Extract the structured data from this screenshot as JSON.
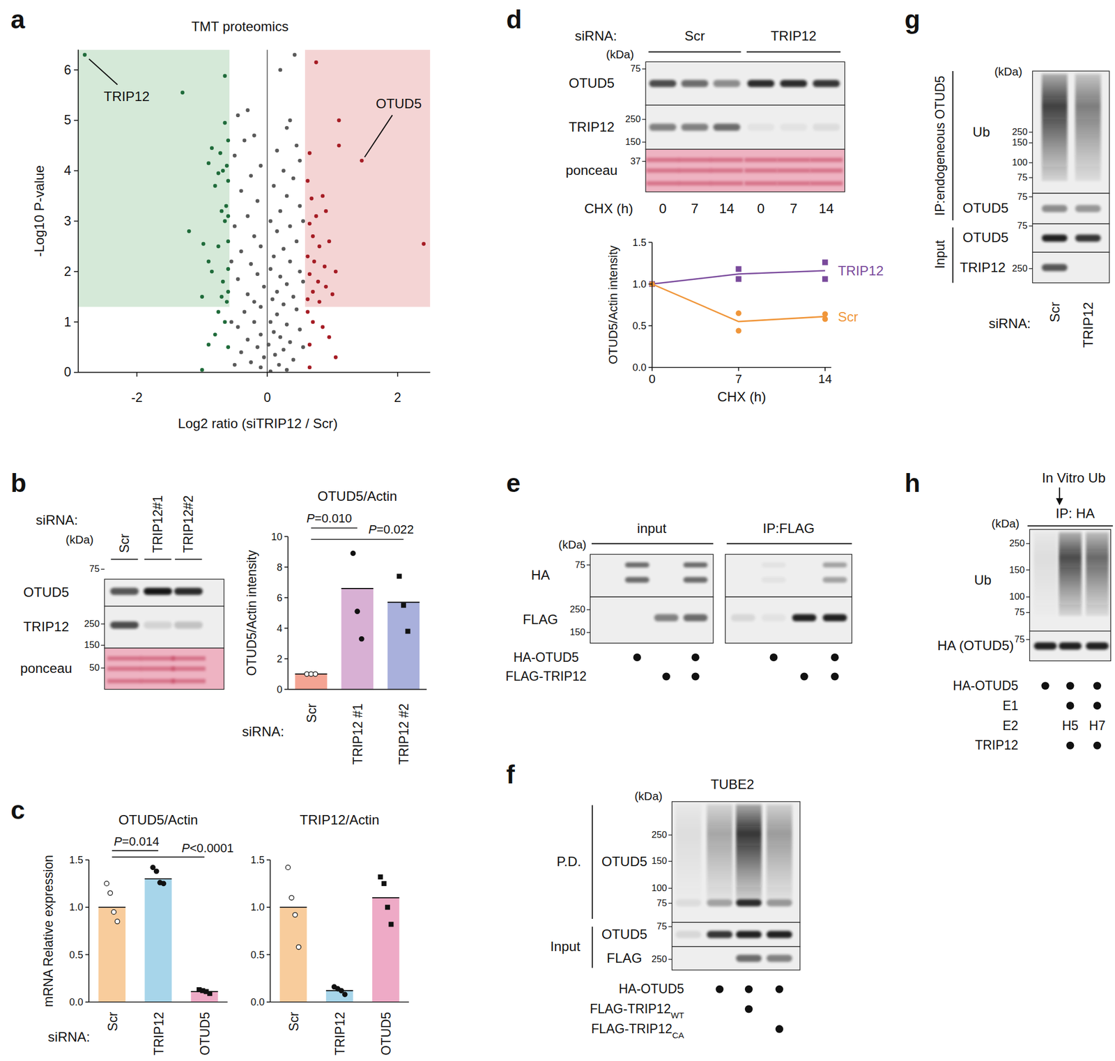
{
  "letters": [
    "a",
    "b",
    "c",
    "d",
    "e",
    "f",
    "g",
    "h"
  ],
  "chart_data": [
    {
      "type": "scatter",
      "title": "TMT proteomics",
      "xlabel": "Log2 ratio (siTRIP12 / Scr)",
      "ylabel": "-Log10 P-value",
      "xlim": [
        -2.9,
        2.5
      ],
      "ylim": [
        0,
        6.4
      ],
      "xticks": [
        -2,
        0,
        2
      ],
      "yticks": [
        0,
        1,
        2,
        3,
        4,
        5,
        6
      ],
      "regions": [
        {
          "color": "#d5e9d8",
          "x": [
            -2.9,
            -0.58
          ],
          "y": [
            1.3,
            6.4
          ]
        },
        {
          "color": "#f4d4d4",
          "x": [
            0.58,
            2.5
          ],
          "y": [
            1.3,
            6.4
          ]
        }
      ],
      "series": [
        {
          "color": "#1f6b3a",
          "x": [
            -2.8,
            -1.3,
            -0.65,
            -0.65,
            -0.6,
            -0.72,
            -0.85,
            -0.9,
            -0.62,
            -0.68,
            -0.75,
            -0.6,
            -0.8,
            -0.63,
            -0.6,
            -0.65,
            -0.7,
            -1.2,
            -0.6,
            -0.75,
            -0.98,
            -0.9,
            -0.85,
            -0.6,
            -0.68,
            -0.6,
            -0.7,
            -1.0,
            -0.62,
            -0.75,
            -0.65,
            -0.8,
            -0.9,
            -1.0,
            -0.6
          ],
          "values": [
            6.3,
            5.55,
            5.88,
            4.95,
            4.6,
            4.35,
            4.45,
            4.15,
            4.1,
            4.0,
            3.95,
            3.8,
            3.7,
            3.3,
            3.1,
            3.0,
            3.2,
            2.8,
            2.6,
            2.5,
            2.55,
            2.2,
            2.0,
            2.05,
            1.8,
            1.6,
            1.5,
            1.5,
            1.4,
            1.2,
            1.0,
            0.75,
            0.55,
            0.05,
            0.5
          ]
        },
        {
          "color": "#a51c24",
          "x": [
            1.45,
            0.75,
            1.1,
            1.1,
            2.4,
            0.65,
            0.62,
            0.68,
            0.85,
            0.9,
            0.75,
            0.65,
            0.7,
            0.95,
            0.8,
            0.62,
            0.72,
            0.88,
            1.05,
            0.65,
            0.78,
            0.9,
            0.7,
            1.0,
            0.62,
            0.8,
            0.62,
            0.7,
            0.85,
            0.95,
            0.65,
            1.05,
            0.65
          ],
          "values": [
            4.2,
            6.15,
            5.0,
            4.5,
            2.55,
            4.35,
            3.8,
            3.45,
            3.5,
            3.2,
            3.1,
            2.95,
            2.7,
            2.6,
            2.5,
            2.3,
            2.2,
            2.1,
            2.0,
            1.95,
            1.8,
            1.7,
            1.6,
            1.55,
            1.45,
            1.4,
            1.2,
            1.0,
            0.9,
            0.7,
            0.55,
            0.3,
            0.1
          ]
        },
        {
          "color": "#5a5a5a",
          "x": [
            0.2,
            0.42,
            -0.3,
            -0.45,
            0.3,
            0.35,
            -0.2,
            -0.35,
            0.15,
            0.45,
            0.5,
            -0.5,
            -0.1,
            0.25,
            -0.25,
            0.4,
            0.1,
            -0.4,
            0.3,
            -0.15,
            0.5,
            0.2,
            -0.3,
            0.05,
            -0.5,
            0.35,
            0.15,
            -0.2,
            0.45,
            -0.1,
            0.25,
            -0.4,
            0.1,
            0.35,
            -0.25,
            0.05,
            0.5,
            -0.15,
            0.2,
            -0.45,
            0.3,
            -0.05,
            0.15,
            -0.3,
            0.4,
            0.08,
            -0.2,
            0.25,
            -0.1,
            0.45,
            -0.35,
            0.15,
            0.05,
            -0.2,
            0.3,
            -0.45,
            0.5,
            0.1,
            -0.1,
            0.2,
            -0.3,
            0.35,
            0.02,
            -0.15,
            0.25,
            -0.4,
            0.12,
            -0.05,
            0.4,
            -0.25,
            0.18,
            -0.1,
            0.3,
            0.05,
            -0.5,
            0.55,
            -0.55,
            0.55,
            -0.55,
            0.55
          ],
          "values": [
            6.0,
            6.3,
            5.2,
            5.1,
            4.85,
            5.0,
            4.7,
            4.6,
            4.4,
            4.5,
            4.2,
            4.3,
            4.1,
            4.0,
            3.9,
            3.85,
            3.7,
            3.6,
            3.5,
            3.4,
            3.3,
            3.2,
            3.1,
            3.0,
            2.9,
            2.9,
            2.8,
            2.7,
            2.6,
            2.5,
            2.45,
            2.4,
            2.3,
            2.2,
            2.15,
            2.05,
            2.0,
            1.95,
            1.9,
            1.85,
            1.75,
            1.7,
            1.6,
            1.55,
            1.5,
            1.45,
            1.4,
            1.35,
            1.3,
            1.25,
            1.2,
            1.15,
            1.0,
            1.0,
            0.95,
            0.9,
            0.85,
            0.8,
            0.75,
            0.7,
            0.65,
            0.6,
            0.55,
            0.5,
            0.45,
            0.4,
            0.35,
            0.3,
            0.25,
            0.2,
            0.15,
            0.1,
            0.05,
            0.02,
            0.15,
            0.5,
            1.0,
            1.8,
            2.2,
            3.0
          ]
        }
      ],
      "annotations": [
        {
          "text": "TRIP12",
          "series": 0,
          "index": 0
        },
        {
          "text": "OTUD5",
          "series": 1,
          "index": 0
        }
      ]
    },
    {
      "type": "bar",
      "title": "OTUD5/Actin",
      "ylabel": "OTUD5/Actin intensity",
      "xlabel": "siRNA:",
      "categories": [
        "Scr",
        "TRIP12 #1",
        "TRIP12 #2"
      ],
      "values": [
        1.0,
        6.6,
        5.7
      ],
      "colors": [
        "#f4a493",
        "#d8b0d4",
        "#a9b0dc"
      ],
      "points": [
        [
          1.0,
          1.0,
          1.0
        ],
        [
          8.9,
          5.1,
          3.3
        ],
        [
          7.4,
          5.5,
          3.8
        ]
      ],
      "ylim": [
        0,
        10
      ],
      "yticks": [
        0,
        2,
        4,
        6,
        8,
        10
      ],
      "annotations": [
        {
          "text": "P=0.010",
          "from": 0,
          "to": 1
        },
        {
          "text": "P=0.022",
          "from": 0,
          "to": 2
        }
      ]
    },
    {
      "type": "bar",
      "title": "OTUD5/Actin",
      "ylabel": "mRNA Relative expression",
      "xlabel": "siRNA:",
      "categories": [
        "Scr",
        "TRIP12",
        "OTUD5"
      ],
      "values": [
        1.0,
        1.3,
        0.11
      ],
      "colors": [
        "#f8cc9c",
        "#a7d5ea",
        "#eeaac6"
      ],
      "points": [
        [
          1.25,
          1.15,
          0.95,
          0.85
        ],
        [
          1.42,
          1.38,
          1.26,
          1.25
        ],
        [
          0.13,
          0.12,
          0.11,
          0.09
        ]
      ],
      "ylim": [
        0,
        1.5
      ],
      "yticks": [
        {
          "value": 0,
          "label": "0.0"
        },
        {
          "value": 0.5,
          "label": "0.5"
        },
        {
          "value": 1,
          "label": "1.0"
        },
        {
          "value": 1.5,
          "label": "1.5"
        }
      ],
      "annotations": [
        {
          "text": "P=0.014",
          "from": 0,
          "to": 1
        },
        {
          "text": "P<0.0001",
          "from": 0,
          "to": 2
        }
      ]
    },
    {
      "type": "bar",
      "title": "TRIP12/Actin",
      "categories": [
        "Scr",
        "TRIP12",
        "OTUD5"
      ],
      "values": [
        1.0,
        0.12,
        1.1
      ],
      "colors": [
        "#f8cc9c",
        "#a7d5ea",
        "#eeaac6"
      ],
      "points": [
        [
          1.42,
          1.1,
          0.92,
          0.58
        ],
        [
          0.16,
          0.14,
          0.12,
          0.08
        ],
        [
          1.32,
          1.25,
          1.0,
          0.82
        ]
      ],
      "ylim": [
        0,
        1.5
      ],
      "yticks": [
        {
          "value": 0,
          "label": "0.0"
        },
        {
          "value": 0.5,
          "label": "0.5"
        },
        {
          "value": 1,
          "label": "1.0"
        },
        {
          "value": 1.5,
          "label": "1.5"
        }
      ],
      "annotations": []
    },
    {
      "type": "line",
      "xlabel": "CHX (h)",
      "ylabel": "OTUD5/Actin intensity",
      "x": [
        0,
        7,
        14
      ],
      "xlim": [
        0,
        14.5
      ],
      "ylim": [
        0,
        1.5
      ],
      "xticks": [
        0,
        7,
        14
      ],
      "yticks": [
        {
          "value": 0,
          "label": "0.0"
        },
        {
          "value": 0.5,
          "label": "0.5"
        },
        {
          "value": 1,
          "label": "1.0"
        },
        {
          "value": 1.5,
          "label": "1.5"
        }
      ],
      "series": [
        {
          "name": "TRIP12",
          "color": "#7a4a9c",
          "marker": "square",
          "values": [
            1.0,
            1.12,
            1.16
          ],
          "points": [
            [
              1.0
            ],
            [
              1.18,
              1.06
            ],
            [
              1.26,
              1.06
            ]
          ]
        },
        {
          "name": "Scr",
          "color": "#f0963a",
          "marker": "circle",
          "values": [
            1.0,
            0.55,
            0.61
          ],
          "points": [
            [
              1.0
            ],
            [
              0.65,
              0.44
            ],
            [
              0.64,
              0.58
            ]
          ]
        }
      ]
    }
  ],
  "blots": {
    "b": {
      "header": "siRNA:",
      "kda": "(kDa)",
      "lanes": [
        "Scr",
        "TRIP12#1",
        "TRIP12#2"
      ],
      "rows": [
        {
          "label": "OTUD5",
          "markers": [
            75
          ],
          "intensity": [
            0.7,
            1.0,
            0.9
          ]
        },
        {
          "label": "TRIP12",
          "markers": [
            250,
            150
          ],
          "intensity": [
            0.75,
            0.12,
            0.2
          ]
        },
        {
          "label": "ponceau",
          "markers": [
            50
          ],
          "intensity": [
            1,
            1,
            1
          ]
        }
      ]
    },
    "d": {
      "header": "siRNA:",
      "kda": "(kDa)",
      "groups": [
        "Scr",
        "TRIP12"
      ],
      "lane_title": "CHX (h)",
      "lanes": [
        "0",
        "7",
        "14",
        "0",
        "7",
        "14"
      ],
      "rows": [
        {
          "label": "OTUD5",
          "markers": [
            75
          ],
          "intensity": [
            0.75,
            0.6,
            0.45,
            0.9,
            0.9,
            0.85
          ]
        },
        {
          "label": "TRIP12",
          "markers": [
            250,
            150
          ],
          "intensity": [
            0.5,
            0.5,
            0.6,
            0.05,
            0.05,
            0.08
          ]
        },
        {
          "label": "ponceau",
          "markers": [
            37
          ],
          "intensity": [
            1,
            1,
            1,
            1,
            1,
            1
          ]
        }
      ]
    },
    "e": {
      "kda": "(kDa)",
      "headers": [
        "input",
        "IP:FLAG"
      ],
      "rows": [
        {
          "label": "HA",
          "markers": [
            75
          ],
          "intensity": [
            0,
            0.6,
            0,
            0.6,
            0,
            0.05,
            0,
            0.35
          ]
        },
        {
          "label": "FLAG",
          "markers": [
            250,
            150
          ],
          "intensity": [
            0,
            0,
            0.5,
            0.6,
            0.1,
            0.05,
            0.95,
            0.95
          ]
        }
      ],
      "conditions": [
        {
          "label": "HA-OTUD5",
          "lanes": [
            false,
            true,
            false,
            true,
            false,
            true,
            false,
            true
          ]
        },
        {
          "label": "FLAG-TRIP12",
          "lanes": [
            false,
            false,
            true,
            true,
            false,
            false,
            true,
            true
          ]
        }
      ]
    },
    "f": {
      "title": "TUBE2",
      "kda": "(kDa)",
      "groups": [
        "P.D.",
        "Input"
      ],
      "rows": [
        {
          "label": "OTUD5",
          "markers": [
            250,
            150,
            100,
            75
          ],
          "intensity": [
            0.08,
            0.35,
            0.9,
            0.4
          ]
        },
        {
          "label": "OTUD5",
          "markers": [
            75
          ],
          "intensity": [
            0.1,
            0.85,
            0.95,
            0.95
          ]
        },
        {
          "label": "FLAG",
          "markers": [
            250
          ],
          "intensity": [
            0,
            0,
            0.6,
            0.5
          ]
        }
      ],
      "conditions": [
        {
          "label": "HA-OTUD5",
          "lanes": [
            false,
            true,
            true,
            true
          ]
        },
        {
          "label": "FLAG-TRIP12",
          "sub": "WT",
          "lanes": [
            false,
            false,
            true,
            false
          ]
        },
        {
          "label": "FLAG-TRIP12",
          "sub": "CA",
          "lanes": [
            false,
            false,
            false,
            true
          ]
        }
      ]
    },
    "g": {
      "kda": "(kDa)",
      "groups": [
        "IP:endogeneous OTUD5",
        "Input"
      ],
      "header": "siRNA:",
      "lanes": [
        "Scr",
        "TRIP12"
      ],
      "rows": [
        {
          "label": "Ub",
          "markers": [
            250,
            150,
            100,
            75
          ],
          "intensity": [
            0.85,
            0.55
          ]
        },
        {
          "label": "OTUD5",
          "markers": [
            75
          ],
          "intensity": [
            0.45,
            0.4
          ]
        },
        {
          "label": "OTUD5",
          "markers": [
            75
          ],
          "intensity": [
            0.95,
            0.85
          ]
        },
        {
          "label": "TRIP12",
          "markers": [
            250
          ],
          "intensity": [
            0.7,
            0
          ]
        }
      ]
    },
    "h": {
      "title": "In Vitro Ub",
      "header": "IP: HA",
      "kda": "(kDa)",
      "rows": [
        {
          "label": "Ub",
          "markers": [
            250,
            150,
            100,
            75
          ],
          "intensity": [
            0.08,
            0.8,
            0.65
          ]
        },
        {
          "label": "HA (OTUD5)",
          "markers": [
            75
          ],
          "intensity": [
            0.95,
            0.95,
            0.95
          ]
        }
      ],
      "conditions": [
        {
          "label": "HA-OTUD5",
          "lanes": [
            true,
            true,
            true
          ]
        },
        {
          "label": "E1",
          "lanes": [
            false,
            true,
            true
          ]
        },
        {
          "label": "E2",
          "lanes": [
            null,
            "H5",
            "H7"
          ]
        },
        {
          "label": "TRIP12",
          "lanes": [
            false,
            true,
            true
          ]
        }
      ]
    }
  }
}
